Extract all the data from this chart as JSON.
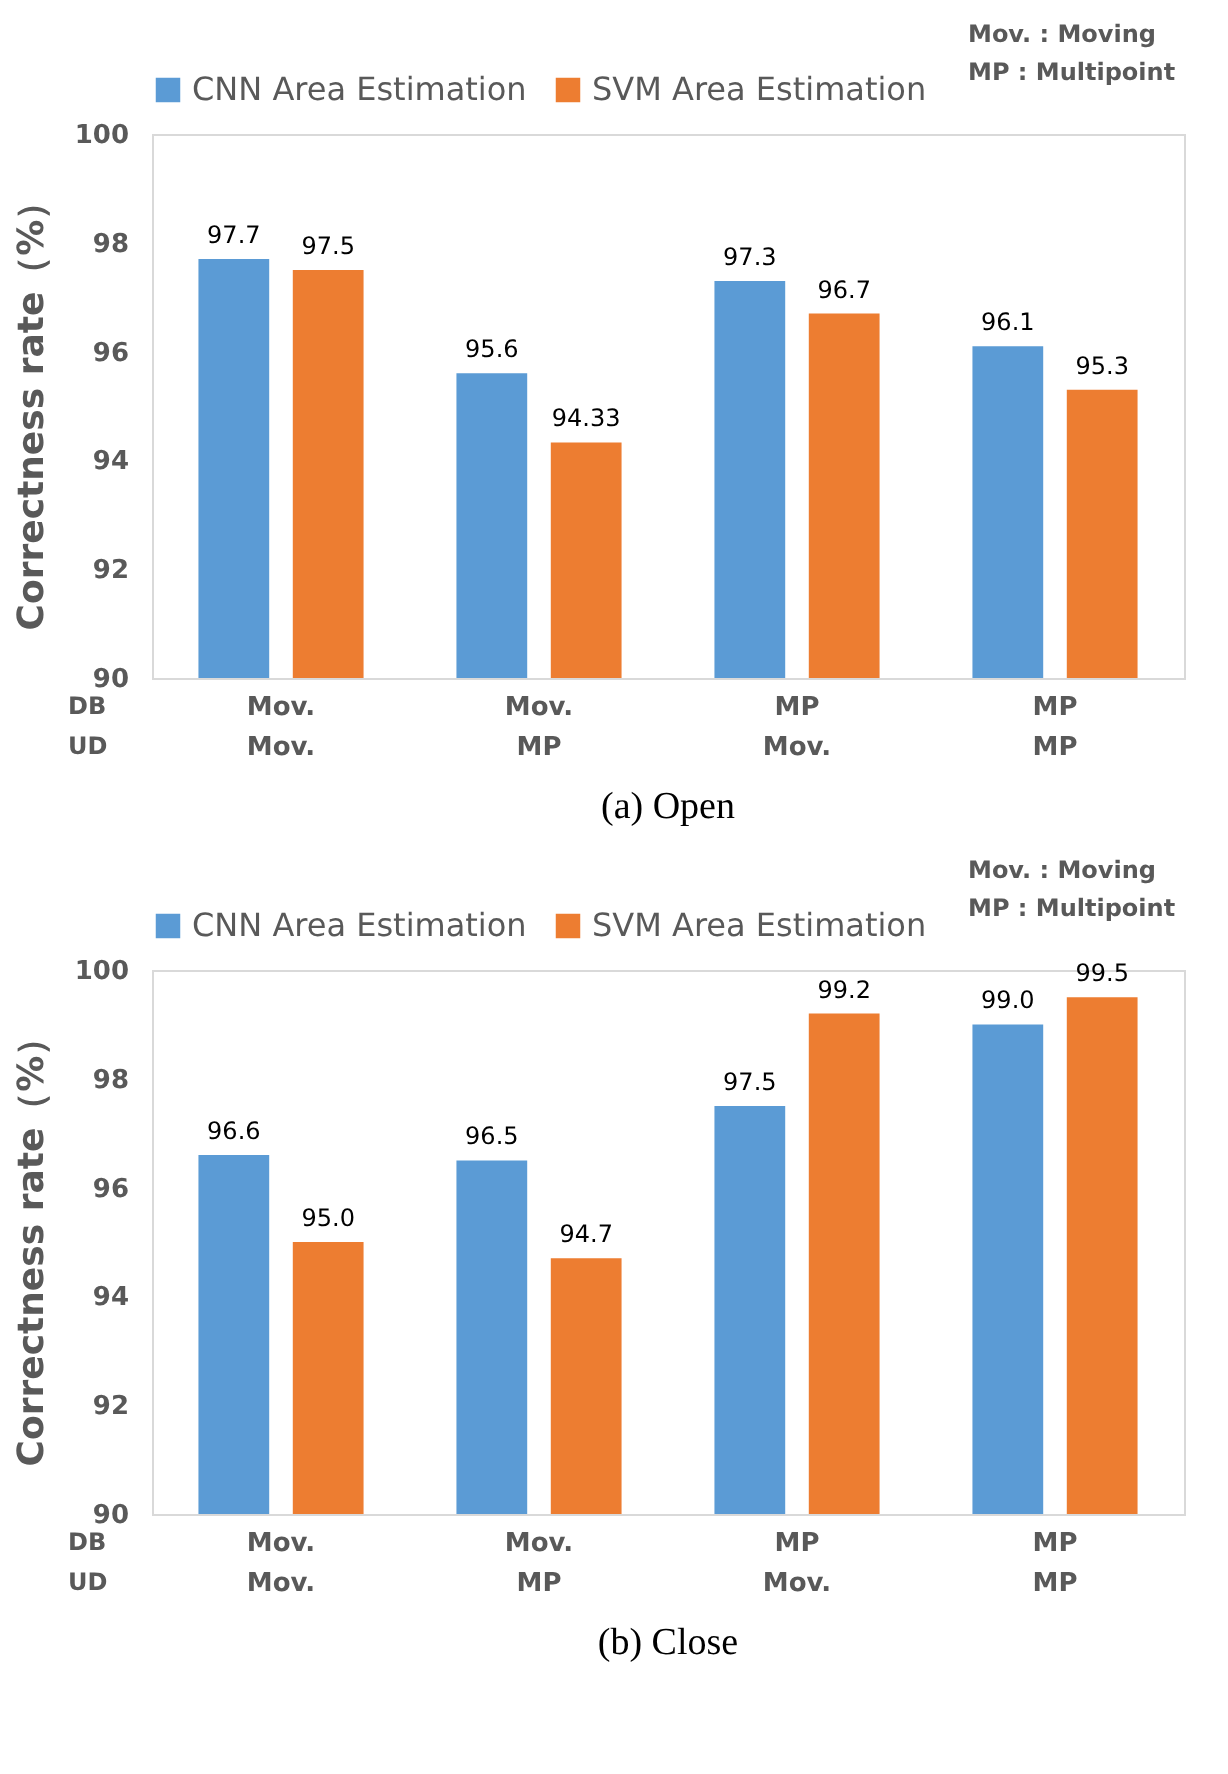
{
  "chart_data": [
    {
      "type": "bar",
      "title": "(a)    Open",
      "ylabel": "Correctness rate（%）",
      "categories": [
        "Mov.\nMov.",
        "Mov.\nMP",
        "MP\nMov.",
        "MP\nMP"
      ],
      "series": [
        {
          "name": "CNN Area Estimation",
          "color": "#5b9bd5",
          "values": [
            97.7,
            95.6,
            97.3,
            96.1
          ],
          "value_labels": [
            "97.7",
            "95.6",
            "97.3",
            "96.1"
          ]
        },
        {
          "name": "SVM Area Estimation",
          "color": "#ed7d31",
          "values": [
            97.5,
            94.33,
            96.7,
            95.3
          ],
          "value_labels": [
            "97.5",
            "94.33",
            "96.7",
            "95.3"
          ]
        }
      ],
      "ylim": [
        90,
        100
      ],
      "yticks": [
        90,
        92,
        94,
        96,
        98,
        100
      ],
      "grid": false,
      "legend": "top",
      "annotations": [
        "DB",
        "UD",
        "Mov. : Moving",
        "MP   : Multipoint"
      ]
    },
    {
      "type": "bar",
      "title": "(b)    Close",
      "ylabel": "Correctness rate（%）",
      "categories": [
        "Mov.\nMov.",
        "Mov.\nMP",
        "MP\nMov.",
        "MP\nMP"
      ],
      "series": [
        {
          "name": "CNN Area Estimation",
          "color": "#5b9bd5",
          "values": [
            96.6,
            96.5,
            97.5,
            99.0
          ],
          "value_labels": [
            "96.6",
            "96.5",
            "97.5",
            "99.0"
          ]
        },
        {
          "name": "SVM Area Estimation",
          "color": "#ed7d31",
          "values": [
            95.0,
            94.7,
            99.2,
            99.5
          ],
          "value_labels": [
            "95.0",
            "94.7",
            "99.2",
            "99.5"
          ]
        }
      ],
      "ylim": [
        90,
        100
      ],
      "yticks": [
        90,
        92,
        94,
        96,
        98,
        100
      ],
      "grid": false,
      "legend": "top",
      "annotations": [
        "DB",
        "UD",
        "Mov. : Moving",
        "MP   : Multipoint"
      ]
    }
  ]
}
